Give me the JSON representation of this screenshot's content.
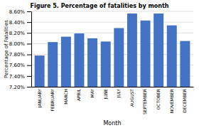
{
  "chart_data": {
    "type": "bar",
    "title": "Figure 5. Percentage of fatalities by month",
    "categories": [
      "JANUARY",
      "FEBRUARY",
      "MARCH",
      "APRIL",
      "MAY",
      "JUNE",
      "JULY",
      "AUGUST",
      "SEPTEMBER",
      "OCTOBER",
      "NOVEMBER",
      "DECEMBER"
    ],
    "values": [
      7.78,
      8.03,
      8.13,
      8.19,
      8.1,
      8.04,
      8.29,
      8.56,
      8.43,
      8.56,
      8.34,
      8.05
    ],
    "color": "#4472C4",
    "xlabel": "Month",
    "ylabel": "Percentage of Fatalities",
    "ylim": [
      7.2,
      8.6
    ],
    "yticks": [
      {
        "value": 7.2,
        "label": "7.20%"
      },
      {
        "value": 7.4,
        "label": "7.40%"
      },
      {
        "value": 7.6,
        "label": "7.60%"
      },
      {
        "value": 7.8,
        "label": "7.80%"
      },
      {
        "value": 8.0,
        "label": "8.00%"
      },
      {
        "value": 8.2,
        "label": "8.20%"
      },
      {
        "value": 8.4,
        "label": "8.40%"
      },
      {
        "value": 8.6,
        "label": "8.60%"
      }
    ],
    "grid": true
  }
}
